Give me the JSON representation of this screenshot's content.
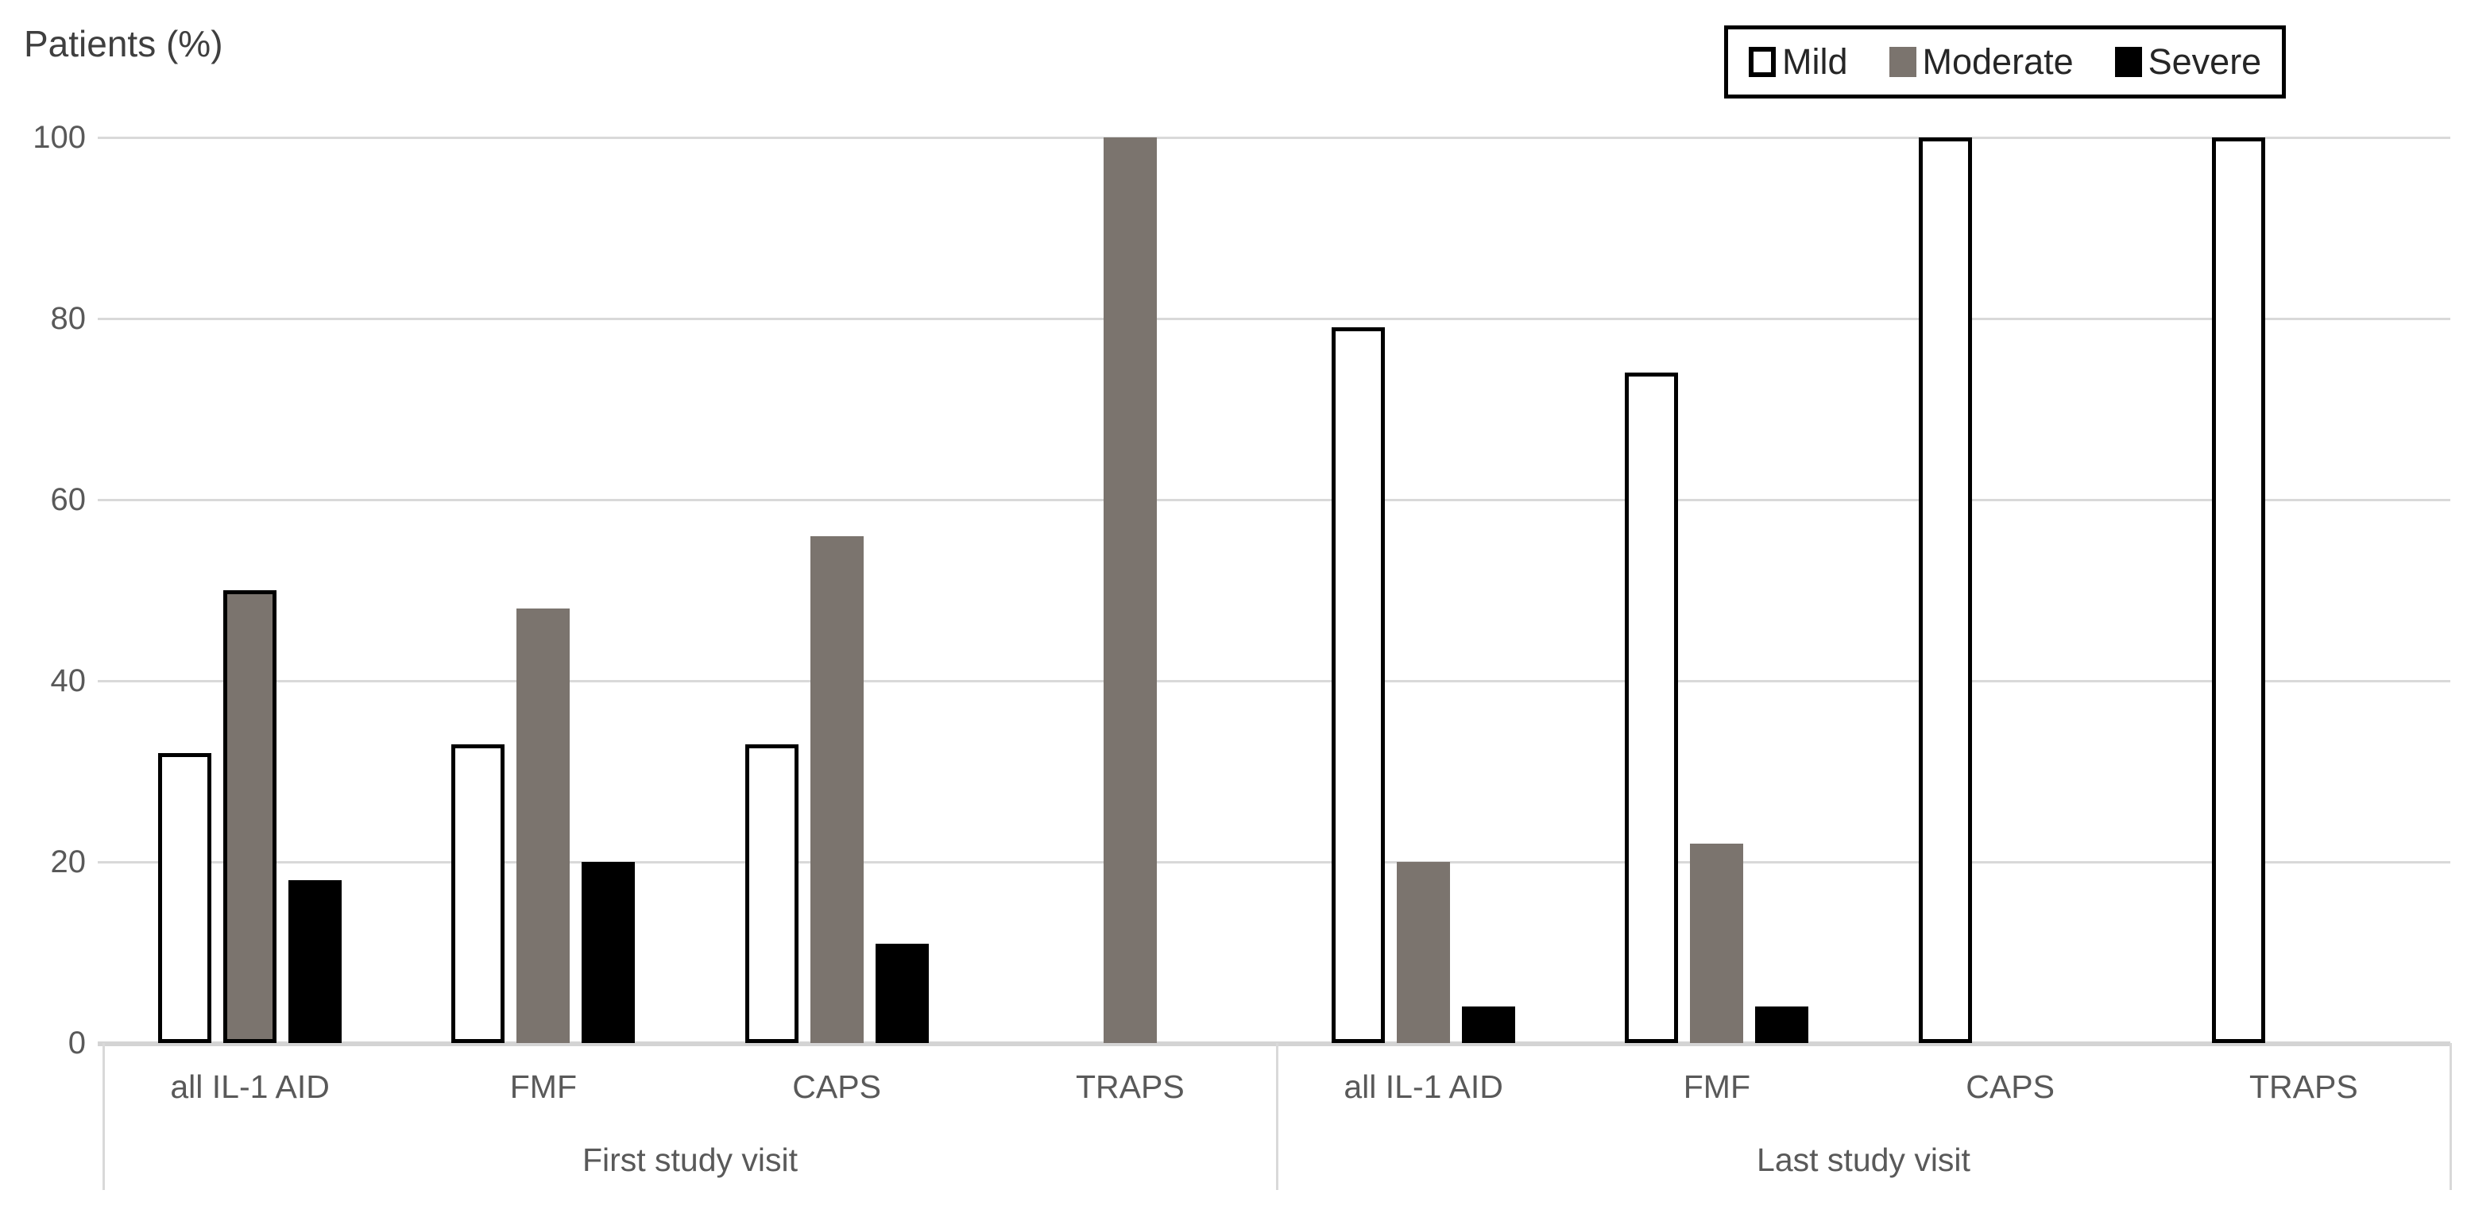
{
  "title": "Patients (%)",
  "legend": {
    "items": [
      {
        "label": "Mild",
        "fill": "#ffffff",
        "border": "#000000"
      },
      {
        "label": "Moderate",
        "fill": "#7b746e",
        "border": null
      },
      {
        "label": "Severe",
        "fill": "#000000",
        "border": null
      }
    ]
  },
  "colors": {
    "mild_fill": "#ffffff",
    "moderate_fill": "#7b746e",
    "severe_fill": "#000000",
    "bar_outline": "#000000",
    "gridline": "#d9d9d9",
    "axis_line": "#d4d4d4",
    "tick_text": "#595959",
    "label_text": "#595959",
    "title_text": "#3f3f3f",
    "legend_text": "#262626",
    "legend_border": "#000000"
  },
  "chart_data": {
    "type": "bar",
    "title": "Patients (%)",
    "ylabel": "Patients (%)",
    "xlabel": "",
    "ylim": [
      0,
      100
    ],
    "yticks": [
      0,
      20,
      40,
      60,
      80,
      100
    ],
    "grid": true,
    "legend_position": "top-right",
    "series_names": [
      "Mild",
      "Moderate",
      "Severe"
    ],
    "groups": [
      {
        "label": "First study visit",
        "categories": [
          "all IL-1 AID",
          "FMF",
          "CAPS",
          "TRAPS"
        ],
        "series": [
          {
            "name": "Mild",
            "values": [
              32,
              33,
              33,
              0
            ]
          },
          {
            "name": "Moderate",
            "values": [
              50,
              48,
              56,
              100
            ]
          },
          {
            "name": "Severe",
            "values": [
              18,
              20,
              11,
              0
            ]
          }
        ]
      },
      {
        "label": "Last study visit",
        "categories": [
          "all IL-1 AID",
          "FMF",
          "CAPS",
          "TRAPS"
        ],
        "series": [
          {
            "name": "Mild",
            "values": [
              79,
              74,
              100,
              100
            ]
          },
          {
            "name": "Moderate",
            "values": [
              20,
              22,
              0,
              0
            ]
          },
          {
            "name": "Severe",
            "values": [
              4,
              4,
              0,
              0
            ]
          }
        ]
      }
    ],
    "annotations": {
      "outlined_bar": {
        "group": "First study visit",
        "category": "all IL-1 AID",
        "series": "Moderate"
      }
    }
  }
}
